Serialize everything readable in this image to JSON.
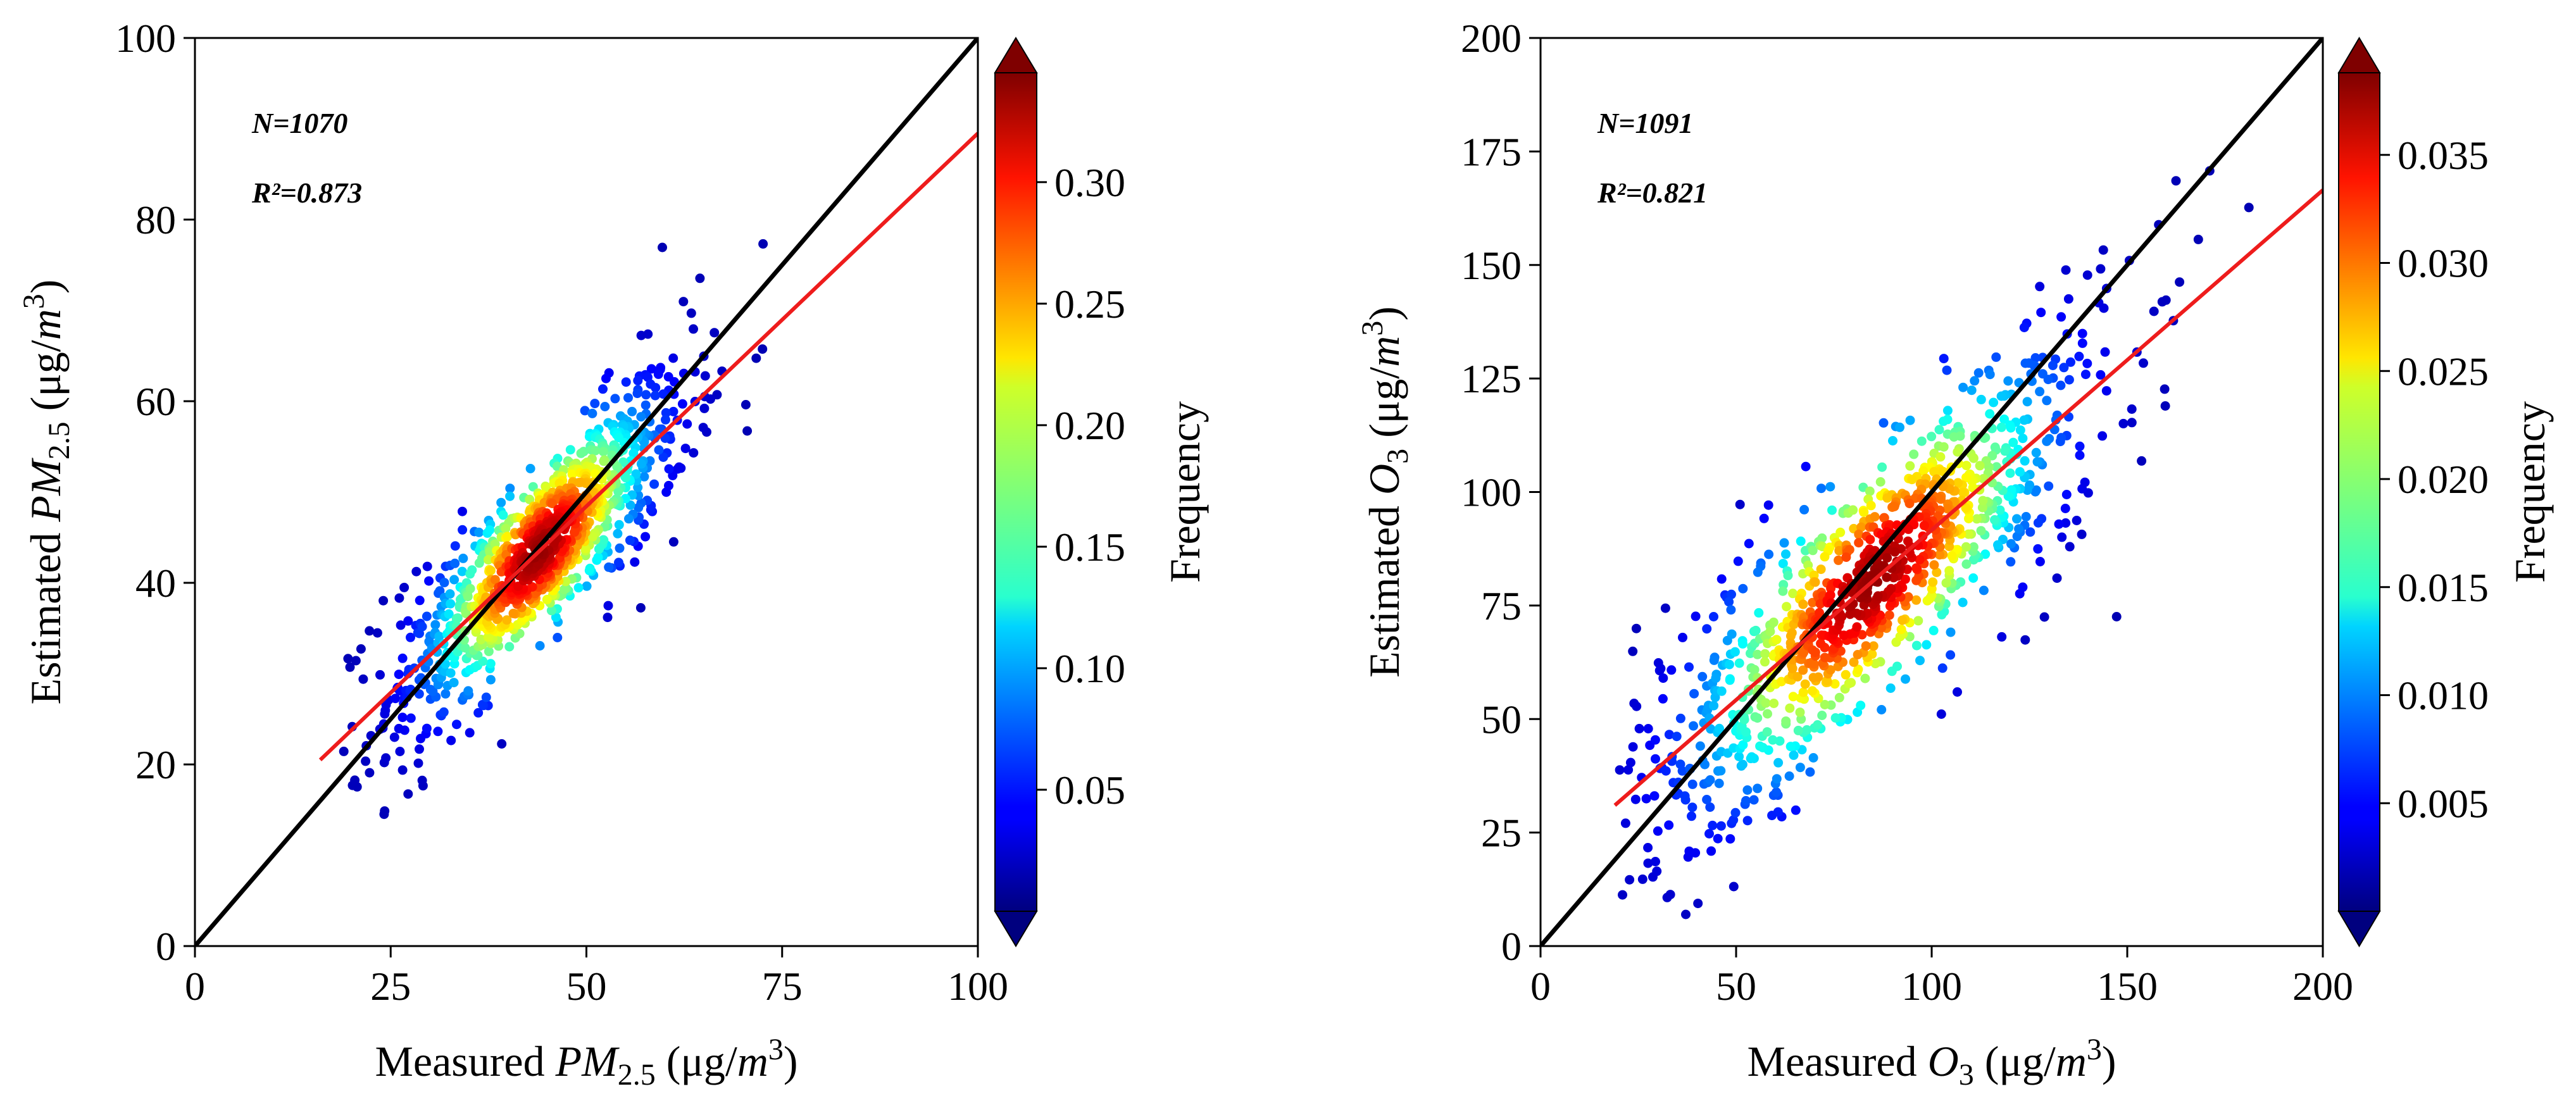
{
  "chart_data": [
    {
      "type": "scatter",
      "xlabel": {
        "prefix": "Measured ",
        "var": "PM",
        "sub": "2.5",
        "unit_pre": " (μg/",
        "unit_var": "m",
        "unit_sup": "3",
        "unit_post": ")"
      },
      "ylabel": {
        "prefix": "Estimated ",
        "var": "PM",
        "sub": "2.5",
        "unit_pre": " (μg/",
        "unit_var": "m",
        "unit_sup": "3",
        "unit_post": ")"
      },
      "xlim": [
        0,
        100
      ],
      "ylim": [
        0,
        100
      ],
      "xticks": [
        0,
        25,
        50,
        75,
        100
      ],
      "yticks": [
        0,
        20,
        40,
        60,
        80,
        100
      ],
      "annotations": [
        "N=1070",
        "R²=0.873"
      ],
      "one_to_one_line": {
        "color": "#000000",
        "x": [
          0,
          100
        ],
        "y": [
          0,
          100
        ]
      },
      "fit_line": {
        "color": "#ee1c1c",
        "x": [
          16,
          100
        ],
        "y": [
          20.5,
          89.5
        ]
      },
      "colorbar": {
        "label": "Frequency",
        "vmin": 0,
        "vmax": 0.345,
        "ticks": [
          "0.05",
          "0.10",
          "0.15",
          "0.20",
          "0.25",
          "0.30"
        ],
        "colormap": "jet",
        "extend": "both"
      },
      "scatter": {
        "n": 1070,
        "x_range": [
          17,
          80
        ],
        "density_peak": [
          44,
          43
        ],
        "slope": 0.82,
        "intercept": 7.4,
        "spread": 3.8,
        "x_sd": 9.5
      }
    },
    {
      "type": "scatter",
      "xlabel": {
        "prefix": "Measured ",
        "var": "O",
        "sub": "3",
        "unit_pre": " (μg/",
        "unit_var": "m",
        "unit_sup": "3",
        "unit_post": ")"
      },
      "ylabel": {
        "prefix": "Estimated ",
        "var": "O",
        "sub": "3",
        "unit_pre": " (μg/",
        "unit_var": "m",
        "unit_sup": "3",
        "unit_post": ")"
      },
      "xlim": [
        0,
        200
      ],
      "ylim": [
        0,
        200
      ],
      "xticks": [
        0,
        50,
        100,
        150,
        200
      ],
      "yticks": [
        0,
        25,
        50,
        75,
        100,
        125,
        150,
        175,
        200
      ],
      "annotations": [
        "N=1091",
        "R²=0.821"
      ],
      "one_to_one_line": {
        "color": "#000000",
        "x": [
          0,
          200
        ],
        "y": [
          0,
          200
        ]
      },
      "fit_line": {
        "color": "#ee1c1c",
        "x": [
          19,
          200
        ],
        "y": [
          31,
          166.5
        ]
      },
      "colorbar": {
        "label": "Frequency",
        "vmin": 0,
        "vmax": 0.0388,
        "ticks": [
          "0.005",
          "0.010",
          "0.015",
          "0.020",
          "0.025",
          "0.030",
          "0.035"
        ],
        "colormap": "jet",
        "extend": "both"
      },
      "scatter": {
        "n": 1091,
        "x_range": [
          20,
          195
        ],
        "density_peak": [
          85,
          84
        ],
        "slope": 0.75,
        "intercept": 16.8,
        "spread": 11.0,
        "x_sd": 30
      }
    }
  ]
}
